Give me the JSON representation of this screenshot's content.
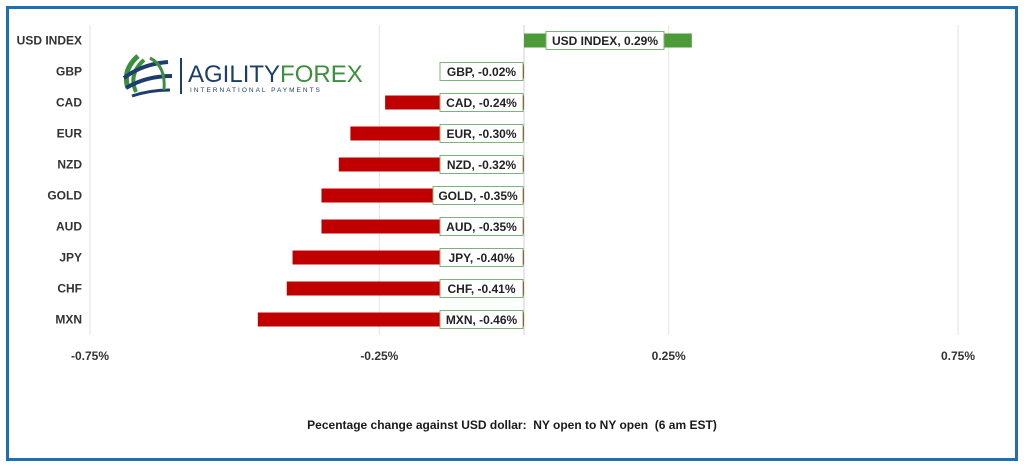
{
  "chart_data": {
    "type": "bar",
    "orientation": "horizontal",
    "title": "",
    "xlabel": "Pecentage change against USD dollar:  NY open to NY open  (6 am EST)",
    "ylabel": "",
    "xlim": [
      -0.75,
      0.75
    ],
    "xticks": [
      -0.75,
      -0.25,
      0.25,
      0.75
    ],
    "xtick_labels": [
      "-0.75%",
      "-0.25%",
      "0.25%",
      "0.75%"
    ],
    "categories": [
      "USD INDEX",
      "GBP",
      "CAD",
      "EUR",
      "NZD",
      "GOLD",
      "AUD",
      "JPY",
      "CHF",
      "MXN"
    ],
    "values": [
      0.29,
      -0.02,
      -0.24,
      -0.3,
      -0.32,
      -0.35,
      -0.35,
      -0.4,
      -0.41,
      -0.46
    ],
    "data_labels": [
      "USD INDEX, 0.29%",
      "GBP, -0.02%",
      "CAD, -0.24%",
      "EUR, -0.30%",
      "NZD, -0.32%",
      "GOLD, -0.35%",
      "AUD, -0.35%",
      "JPY, -0.40%",
      "CHF, -0.41%",
      "MXN, -0.46%"
    ],
    "positive_color": "#4e9a3a",
    "negative_color": "#c00000",
    "grid": "vertical",
    "legend": "none"
  },
  "logo": {
    "name": "AGILITYFOREX",
    "name_part1": "AGILITY",
    "name_part2": "FOREX",
    "tagline": "INTERNATIONAL PAYMENTS",
    "color_dark": "#1c3d6e",
    "color_green": "#3c8f3c"
  },
  "frame_color": "#1f6fb5"
}
